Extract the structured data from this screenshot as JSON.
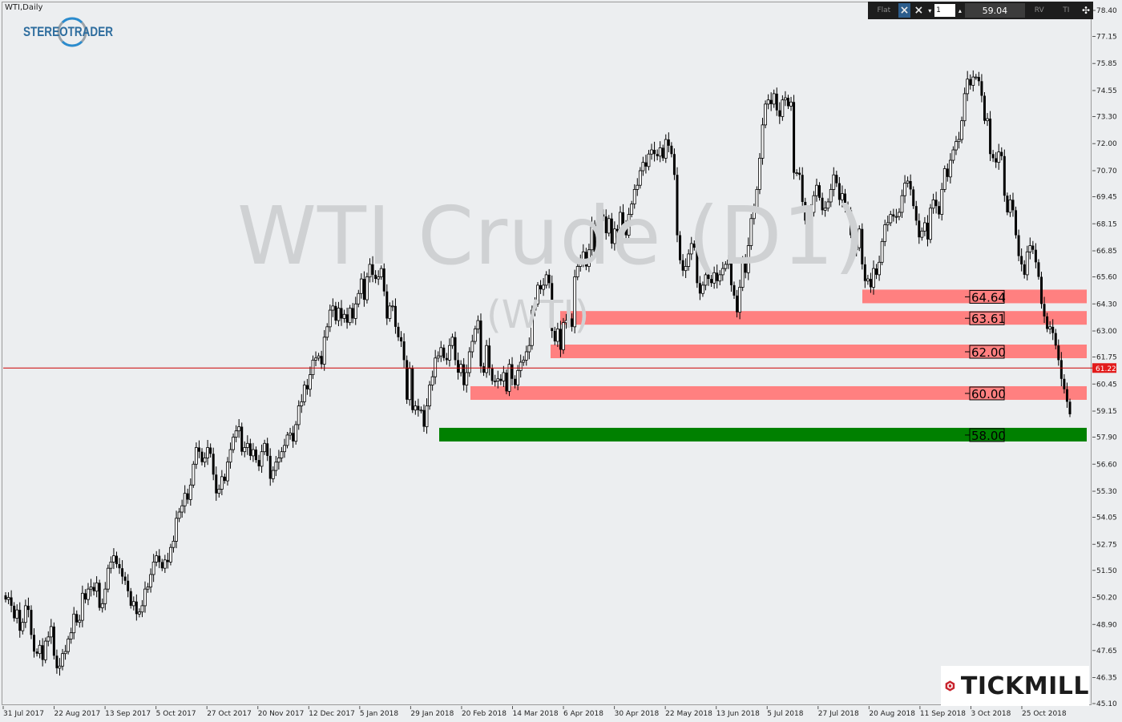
{
  "symbol_label": "WTI,Daily",
  "logo_text": "STEREOTRADER",
  "watermark": {
    "title": "WTI Crude (D1)",
    "subtitle": "(WTI)"
  },
  "toolbar": {
    "mode_label": "Flat",
    "lot_value": "1",
    "price_value": "59.04",
    "btn_rv": "RV",
    "btn_ti": "TI"
  },
  "broker_logo_text": "TICKMILL",
  "colors": {
    "zone_red": "#ff8080",
    "zone_green": "#008000",
    "current_line": "#cc0000",
    "candle": "#000000",
    "watermark": "#cfd1d3",
    "background": "#eceef0"
  },
  "chart_data": {
    "type": "candlestick",
    "timeframe": "Daily",
    "ylim": [
      45.7,
      78.9
    ],
    "y_ticks": [
      "78.40",
      "77.15",
      "75.85",
      "74.55",
      "73.30",
      "72.00",
      "70.70",
      "69.45",
      "68.15",
      "66.85",
      "65.60",
      "64.30",
      "63.00",
      "61.75",
      "60.45",
      "59.15",
      "57.90",
      "56.60",
      "55.30",
      "54.05",
      "52.75",
      "51.50",
      "50.20",
      "48.90",
      "47.65",
      "46.35",
      "45.10"
    ],
    "x_ticks": [
      "31 Jul 2017",
      "22 Aug 2017",
      "13 Sep 2017",
      "5 Oct 2017",
      "27 Oct 2017",
      "20 Nov 2017",
      "12 Dec 2017",
      "5 Jan 2018",
      "29 Jan 2018",
      "20 Feb 2018",
      "14 Mar 2018",
      "6 Apr 2018",
      "30 Apr 2018",
      "22 May 2018",
      "13 Jun 2018",
      "5 Jul 2018",
      "27 Jul 2018",
      "20 Aug 2018",
      "11 Sep 2018",
      "3 Oct 2018",
      "25 Oct 2018"
    ],
    "current_price": 61.22,
    "current_price_label": "61.22",
    "closes": [
      50.1,
      50.2,
      49.8,
      49.2,
      49.6,
      48.6,
      49.0,
      49.8,
      49.6,
      48.4,
      47.6,
      47.5,
      47.9,
      47.2,
      48.1,
      48.3,
      48.8,
      47.4,
      46.8,
      46.9,
      47.5,
      47.6,
      48.2,
      48.5,
      49.4,
      49.0,
      49.1,
      50.4,
      50.1,
      50.6,
      50.7,
      50.5,
      50.9,
      49.7,
      49.9,
      50.6,
      51.6,
      51.9,
      52.2,
      51.8,
      51.6,
      51.2,
      51.0,
      50.5,
      49.8,
      50.0,
      49.4,
      49.5,
      49.8,
      50.6,
      50.7,
      51.3,
      51.9,
      52.2,
      51.9,
      51.6,
      52.0,
      51.9,
      52.6,
      52.9,
      54.0,
      54.3,
      54.6,
      55.2,
      54.9,
      55.6,
      56.6,
      57.4,
      57.2,
      56.7,
      56.9,
      57.4,
      57.1,
      56.1,
      55.2,
      55.4,
      56.0,
      55.8,
      56.7,
      57.3,
      57.9,
      58.2,
      58.4,
      57.2,
      57.4,
      57.6,
      57.0,
      57.3,
      56.8,
      56.5,
      57.2,
      57.6,
      57.0,
      55.9,
      56.3,
      56.7,
      56.9,
      57.2,
      57.5,
      58.0,
      58.1,
      57.7,
      58.5,
      59.4,
      59.6,
      60.4,
      60.2,
      60.9,
      61.6,
      61.7,
      61.8,
      61.4,
      62.7,
      63.2,
      64.0,
      64.2,
      63.5,
      64.1,
      63.6,
      63.8,
      63.4,
      64.1,
      63.6,
      64.3,
      64.8,
      65.5,
      64.5,
      65.6,
      66.2,
      65.7,
      65.5,
      65.6,
      66.0,
      64.9,
      63.6,
      64.2,
      64.2,
      63.2,
      62.7,
      62.5,
      61.6,
      59.7,
      61.2,
      59.2,
      59.4,
      59.2,
      59.2,
      58.4,
      59.4,
      60.4,
      60.8,
      61.7,
      61.8,
      62.2,
      61.7,
      61.6,
      62.3,
      62.7,
      61.6,
      61.0,
      61.4,
      60.4,
      61.0,
      62.0,
      62.5,
      63.1,
      63.5,
      61.3,
      61.0,
      62.3,
      61.2,
      60.6,
      60.6,
      60.7,
      60.6,
      61.0,
      60.1,
      61.4,
      60.7,
      60.4,
      61.1,
      61.5,
      61.6,
      62.0,
      62.3,
      64.0,
      64.3,
      65.2,
      65.0,
      65.2,
      65.7,
      65.3,
      63.0,
      62.5,
      63.1,
      62.1,
      63.4,
      63.5,
      63.6,
      63.2,
      65.6,
      66.1,
      66.4,
      66.8,
      66.1,
      66.9,
      68.1,
      66.8,
      68.2,
      68.6,
      68.5,
      67.7,
      68.4,
      67.2,
      67.9,
      67.8,
      68.7,
      68.1,
      67.6,
      68.6,
      69.1,
      69.8,
      70.0,
      70.7,
      71.1,
      70.9,
      71.5,
      71.7,
      71.5,
      71.4,
      71.8,
      71.3,
      72.2,
      71.9,
      71.5,
      70.5,
      67.6,
      66.4,
      65.9,
      66.1,
      66.7,
      67.2,
      67.0,
      65.3,
      64.8,
      65.2,
      65.7,
      65.5,
      65.3,
      65.8,
      65.4,
      65.7,
      66.0,
      66.2,
      66.4,
      65.2,
      64.7,
      63.9,
      65.1,
      66.4,
      65.8,
      67.1,
      68.4,
      68.8,
      69.8,
      71.3,
      72.9,
      73.9,
      74.1,
      73.9,
      74.4,
      73.6,
      73.3,
      74.1,
      74.2,
      73.8,
      74.0,
      70.6,
      70.6,
      70.5,
      69.2,
      68.3,
      67.6,
      68.7,
      69.5,
      70.0,
      69.4,
      68.8,
      68.9,
      69.2,
      69.8,
      70.5,
      70.1,
      69.3,
      69.6,
      68.9,
      68.8,
      67.6,
      66.9,
      67.0,
      67.9,
      66.2,
      65.4,
      65.5,
      65.1,
      66.0,
      65.7,
      66.3,
      67.3,
      68.1,
      68.2,
      68.6,
      68.5,
      68.5,
      68.7,
      69.5,
      70.1,
      70.2,
      69.8,
      69.0,
      68.3,
      67.5,
      67.8,
      68.2,
      67.4,
      68.9,
      69.3,
      69.0,
      68.6,
      69.8,
      70.8,
      70.4,
      71.2,
      71.7,
      72.1,
      72.2,
      73.1,
      74.4,
      75.1,
      74.8,
      75.2,
      75.2,
      75.0,
      74.3,
      73.1,
      73.2,
      71.5,
      71.3,
      71.1,
      71.6,
      71.4,
      69.5,
      68.7,
      69.3,
      68.8,
      67.6,
      66.6,
      66.2,
      65.7,
      66.8,
      67.1,
      66.9,
      66.3,
      65.6,
      64.3,
      63.7,
      63.1,
      63.2,
      62.9,
      62.3,
      61.6,
      60.7,
      60.2,
      59.6,
      59.0
    ]
  }
}
